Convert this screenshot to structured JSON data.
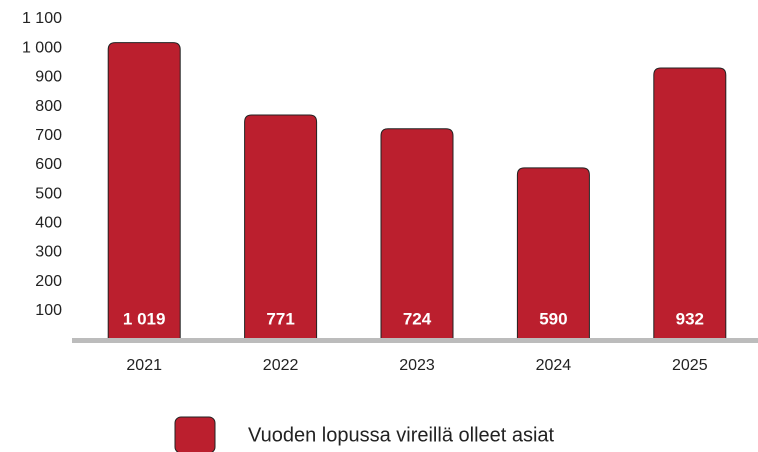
{
  "chart_data": {
    "type": "bar",
    "categories": [
      "2021",
      "2022",
      "2023",
      "2024",
      "2025"
    ],
    "series": [
      {
        "name": "Vuoden lopussa vireillä olleet asiat",
        "color": "#bb1f2e",
        "values": [
          1019,
          771,
          724,
          590,
          932
        ],
        "value_labels": [
          "1 019",
          "771",
          "724",
          "590",
          "932"
        ]
      }
    ],
    "ylim": [
      0,
      1100
    ],
    "yticks": [
      100,
      200,
      300,
      400,
      500,
      600,
      700,
      800,
      900,
      {
        "value": 1000,
        "label": "1 000"
      },
      {
        "value": 1100,
        "label": "1 100"
      }
    ],
    "grid": false
  }
}
